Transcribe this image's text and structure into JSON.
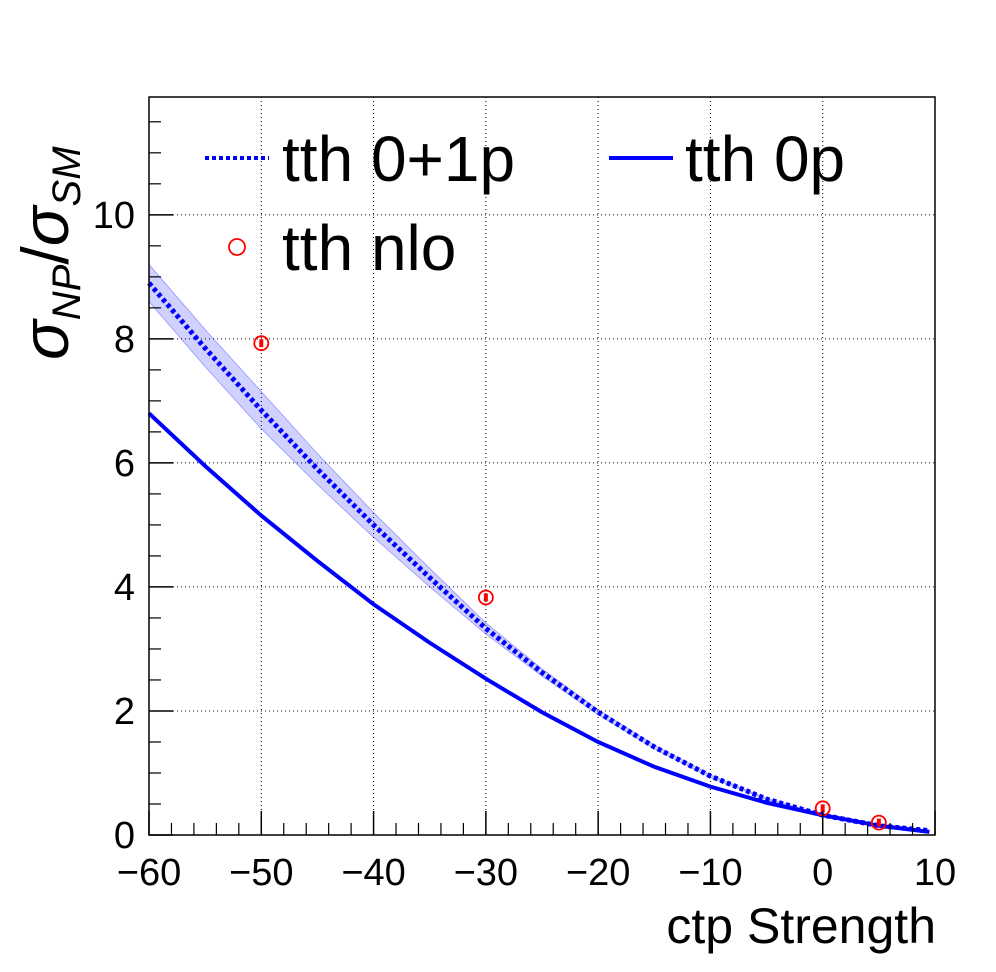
{
  "chart_data": {
    "type": "line",
    "xlabel": "ctp Strength",
    "ylabel": "σ_NP/σ_SM",
    "xlim": [
      -60,
      10
    ],
    "ylim": [
      0,
      11.9
    ],
    "x_ticks": [
      "−60",
      "−50",
      "−40",
      "−30",
      "−20",
      "−10",
      "0",
      "10"
    ],
    "x_tick_values": [
      -60,
      -50,
      -40,
      -30,
      -20,
      -10,
      0,
      10
    ],
    "y_ticks": [
      "0",
      "2",
      "4",
      "6",
      "8",
      "10"
    ],
    "y_tick_values": [
      0,
      2,
      4,
      6,
      8,
      10
    ],
    "grid": true,
    "legend_position": "top",
    "series": [
      {
        "name": "tth 0+1p",
        "style": "dashed-with-band",
        "color": "#0000ff",
        "x": [
          -60,
          -55,
          -50,
          -45,
          -40,
          -35,
          -30,
          -25,
          -20,
          -15,
          -10,
          -5,
          0,
          5,
          9.5
        ],
        "values": [
          8.9,
          7.85,
          6.85,
          5.9,
          5.0,
          4.15,
          3.33,
          2.62,
          1.98,
          1.42,
          0.95,
          0.58,
          0.32,
          0.15,
          0.07
        ],
        "band_upper": [
          9.2,
          8.15,
          7.15,
          6.15,
          5.2,
          4.3,
          3.42,
          2.68,
          2.02,
          1.45,
          0.97,
          0.59,
          0.33,
          0.155,
          0.072
        ],
        "band_lower": [
          8.6,
          7.55,
          6.55,
          5.65,
          4.8,
          4.0,
          3.24,
          2.56,
          1.94,
          1.39,
          0.93,
          0.57,
          0.31,
          0.145,
          0.068
        ]
      },
      {
        "name": "tth 0p",
        "style": "solid",
        "color": "#0000ff",
        "x": [
          -60,
          -55,
          -50,
          -45,
          -40,
          -35,
          -30,
          -25,
          -20,
          -15,
          -10,
          -5,
          0,
          5,
          9.5
        ],
        "values": [
          6.8,
          5.95,
          5.15,
          4.42,
          3.72,
          3.1,
          2.52,
          1.98,
          1.5,
          1.1,
          0.78,
          0.52,
          0.32,
          0.15,
          0.05
        ]
      },
      {
        "name": "tth nlo",
        "style": "markers",
        "color": "#ff0000",
        "x": [
          -50,
          -30,
          0,
          5
        ],
        "values": [
          7.93,
          3.83,
          0.43,
          0.2
        ]
      }
    ]
  }
}
